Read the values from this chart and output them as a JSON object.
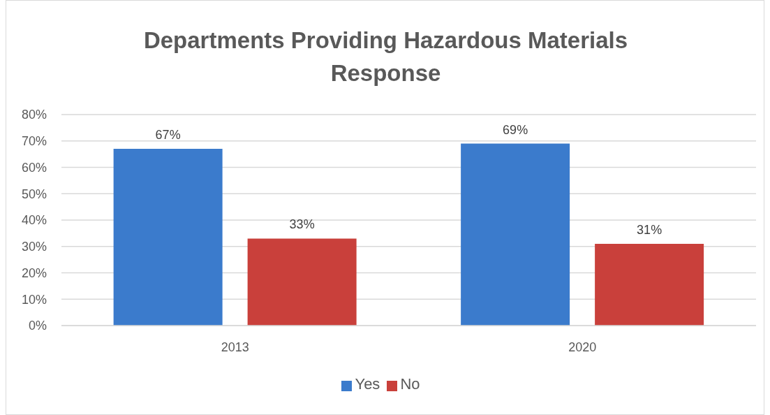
{
  "chart_data": {
    "type": "bar",
    "title": "Departments Providing Hazardous Materials Response",
    "categories": [
      "2013",
      "2020"
    ],
    "series": [
      {
        "name": "Yes",
        "color": "#3b7bcc",
        "values": [
          67,
          69
        ],
        "value_labels": [
          "67%",
          "69%"
        ]
      },
      {
        "name": "No",
        "color": "#c9403b",
        "values": [
          33,
          31
        ],
        "value_labels": [
          "33%",
          "31%"
        ]
      }
    ],
    "ylim": [
      0,
      80
    ],
    "yticks": [
      {
        "value": 0,
        "label": "0%"
      },
      {
        "value": 10,
        "label": "10%"
      },
      {
        "value": 20,
        "label": "20%"
      },
      {
        "value": 30,
        "label": "30%"
      },
      {
        "value": 40,
        "label": "40%"
      },
      {
        "value": 50,
        "label": "50%"
      },
      {
        "value": 60,
        "label": "60%"
      },
      {
        "value": 70,
        "label": "70%"
      },
      {
        "value": 80,
        "label": "80%"
      }
    ],
    "grid": "y",
    "legend": "bottom"
  }
}
